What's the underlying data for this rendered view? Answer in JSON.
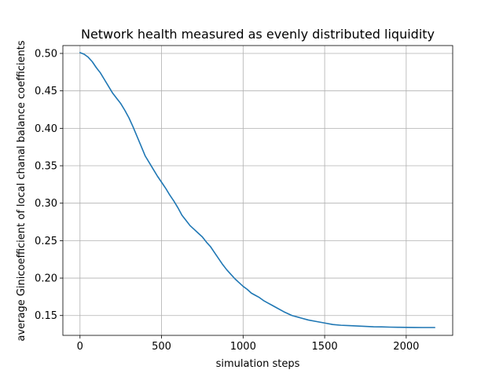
{
  "chart_data": {
    "type": "line",
    "title": "Network health measured as evenly distributed liquidity",
    "xlabel": "simulation steps",
    "ylabel": "average Ginicoefficient of local chanal balance coefficients",
    "xlim": [
      -105,
      2285
    ],
    "ylim": [
      0.1235,
      0.5105
    ],
    "xticks": [
      0,
      500,
      1000,
      1500,
      2000
    ],
    "xtick_labels": [
      "0",
      "500",
      "1000",
      "1500",
      "2000"
    ],
    "yticks": [
      0.15,
      0.2,
      0.25,
      0.3,
      0.35,
      0.4,
      0.45,
      0.5
    ],
    "ytick_labels": [
      "0.15",
      "0.20",
      "0.25",
      "0.30",
      "0.35",
      "0.40",
      "0.45",
      "0.50"
    ],
    "grid": true,
    "line_color": "#1f77b4",
    "series": [
      {
        "x": [
          0,
          25,
          50,
          75,
          100,
          125,
          150,
          175,
          200,
          225,
          250,
          275,
          300,
          325,
          350,
          375,
          400,
          425,
          450,
          475,
          500,
          525,
          550,
          575,
          600,
          625,
          650,
          675,
          700,
          725,
          750,
          775,
          800,
          825,
          850,
          875,
          900,
          925,
          950,
          975,
          1000,
          1025,
          1050,
          1075,
          1100,
          1125,
          1150,
          1175,
          1200,
          1250,
          1300,
          1350,
          1400,
          1450,
          1500,
          1550,
          1600,
          1650,
          1700,
          1750,
          1800,
          1850,
          1900,
          1950,
          2000,
          2050,
          2100,
          2175
        ],
        "y": [
          0.501,
          0.499,
          0.495,
          0.489,
          0.481,
          0.474,
          0.465,
          0.456,
          0.447,
          0.44,
          0.433,
          0.424,
          0.414,
          0.402,
          0.389,
          0.376,
          0.363,
          0.354,
          0.345,
          0.336,
          0.328,
          0.32,
          0.311,
          0.303,
          0.294,
          0.284,
          0.277,
          0.27,
          0.265,
          0.26,
          0.255,
          0.248,
          0.242,
          0.234,
          0.226,
          0.218,
          0.211,
          0.205,
          0.199,
          0.194,
          0.189,
          0.185,
          0.18,
          0.177,
          0.174,
          0.17,
          0.167,
          0.164,
          0.161,
          0.155,
          0.15,
          0.147,
          0.144,
          0.142,
          0.14,
          0.138,
          0.137,
          0.1365,
          0.136,
          0.1355,
          0.135,
          0.1348,
          0.1345,
          0.1343,
          0.1342,
          0.1341,
          0.134,
          0.134
        ]
      }
    ]
  }
}
